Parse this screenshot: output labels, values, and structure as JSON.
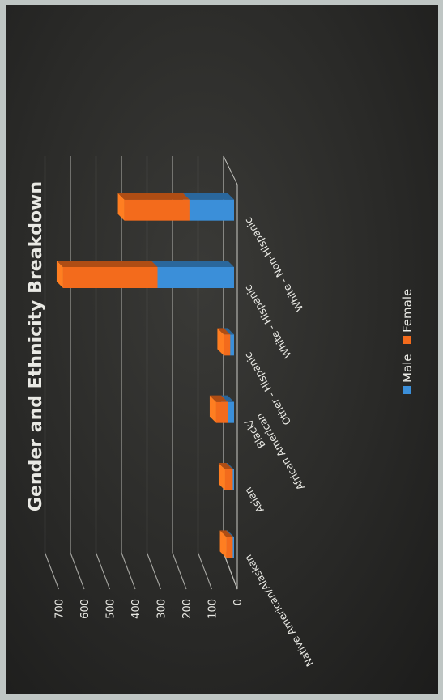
{
  "chart_data": {
    "type": "bar",
    "stacked": true,
    "three_d": true,
    "title": "Gender and Ethnicity Breakdown",
    "categories": [
      "Native American/Alaskan",
      "Asian",
      "Black/ African American",
      "Other - Hispanic",
      "White - Hispanic",
      "White - Non-Hispanic"
    ],
    "category_label_parts": [
      [
        "Native American/Alaskan"
      ],
      [
        "Asian"
      ],
      [
        "Black/",
        "African American"
      ],
      [
        "Other - Hispanic"
      ],
      [
        "White - Hispanic"
      ],
      [
        "White - Non-Hispanic"
      ]
    ],
    "series": [
      {
        "name": "Male",
        "values": [
          5,
          5,
          25,
          15,
          300,
          175
        ]
      },
      {
        "name": "Female",
        "values": [
          25,
          30,
          45,
          25,
          370,
          255
        ]
      }
    ],
    "ylim": [
      0,
      700
    ],
    "yticks": [
      0,
      100,
      200,
      300,
      400,
      500,
      600,
      700
    ],
    "grid": true,
    "legend_position": "bottom",
    "colors": {
      "Male": "#3b8fd9",
      "Female": "#f36b1c"
    },
    "orientation": "rotated-90-ccw"
  }
}
